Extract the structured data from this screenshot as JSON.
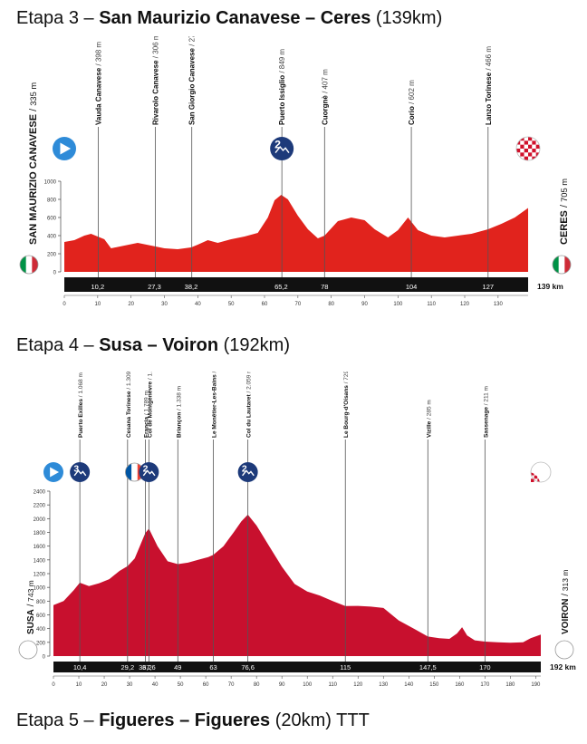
{
  "stages": [
    {
      "prefix": "Etapa 3 – ",
      "route": "San Maurizio Canavese – Ceres",
      "distance": "(139km)",
      "chart_data": {
        "type": "area",
        "fill_color": "#e1231d",
        "total_label": "139 km",
        "xlim": [
          0,
          139
        ],
        "ylim": [
          0,
          1000
        ],
        "x_ticks": [
          0,
          10,
          20,
          30,
          40,
          50,
          60,
          70,
          80,
          90,
          100,
          110,
          120,
          130
        ],
        "y_ticks": [
          0,
          200,
          400,
          600,
          800,
          1000
        ],
        "start": {
          "name": "SAN MAURIZIO CANAVESE",
          "alt": "335 m",
          "flag": "italy"
        },
        "finish": {
          "name": "CERES",
          "alt": "705 m",
          "flag": "italy"
        },
        "profile": [
          [
            0,
            330
          ],
          [
            3,
            350
          ],
          [
            6,
            400
          ],
          [
            8,
            420
          ],
          [
            10,
            390
          ],
          [
            12,
            360
          ],
          [
            14,
            260
          ],
          [
            18,
            290
          ],
          [
            22,
            320
          ],
          [
            26,
            290
          ],
          [
            30,
            260
          ],
          [
            34,
            250
          ],
          [
            38,
            270
          ],
          [
            40,
            300
          ],
          [
            43,
            350
          ],
          [
            46,
            320
          ],
          [
            50,
            360
          ],
          [
            54,
            390
          ],
          [
            58,
            430
          ],
          [
            61,
            600
          ],
          [
            63,
            790
          ],
          [
            65,
            850
          ],
          [
            67,
            800
          ],
          [
            70,
            620
          ],
          [
            73,
            470
          ],
          [
            76,
            370
          ],
          [
            78,
            400
          ],
          [
            82,
            560
          ],
          [
            86,
            600
          ],
          [
            90,
            570
          ],
          [
            93,
            470
          ],
          [
            97,
            380
          ],
          [
            100,
            460
          ],
          [
            103,
            600
          ],
          [
            106,
            460
          ],
          [
            110,
            400
          ],
          [
            114,
            380
          ],
          [
            118,
            400
          ],
          [
            122,
            420
          ],
          [
            127,
            470
          ],
          [
            131,
            530
          ],
          [
            135,
            600
          ],
          [
            139,
            705
          ]
        ],
        "km_markers": [
          {
            "km": 10,
            "label": "10,2"
          },
          {
            "km": 27,
            "label": "27,3"
          },
          {
            "km": 38,
            "label": "38,2"
          },
          {
            "km": 65,
            "label": "65,2"
          },
          {
            "km": 78,
            "label": "78"
          },
          {
            "km": 104,
            "label": "104"
          },
          {
            "km": 127,
            "label": "127"
          }
        ],
        "annotations": [
          {
            "km": 10.2,
            "name": "Vauda Canavese",
            "alt": "398 m"
          },
          {
            "km": 27.3,
            "name": "Rivarolo Canavese",
            "alt": "306 m"
          },
          {
            "km": 38.2,
            "name": "San Giorgio Canavese",
            "alt": "278 m"
          },
          {
            "km": 65.2,
            "name": "Puerto Issiglio",
            "alt": "849 m",
            "climb": "2"
          },
          {
            "km": 78,
            "name": "Cuorgnè",
            "alt": "407 m"
          },
          {
            "km": 104,
            "name": "Corio",
            "alt": "602 m"
          },
          {
            "km": 127,
            "name": "Lanzo Torinese",
            "alt": "466 m"
          }
        ]
      }
    },
    {
      "prefix": "Etapa 4 – ",
      "route": "Susa – Voiron",
      "distance": "(192km)",
      "chart_data": {
        "type": "area",
        "fill_color": "#c8102e",
        "total_label": "192 km",
        "xlim": [
          0,
          192
        ],
        "ylim": [
          0,
          2400
        ],
        "x_ticks": [
          0,
          10,
          20,
          30,
          40,
          50,
          60,
          70,
          80,
          90,
          100,
          110,
          120,
          130,
          140,
          150,
          160,
          170,
          180,
          190
        ],
        "y_ticks": [
          0,
          200,
          400,
          600,
          800,
          1000,
          1200,
          1400,
          1600,
          1800,
          2000,
          2200,
          2400
        ],
        "start": {
          "name": "SUSA",
          "alt": "743 m",
          "flag": "italy"
        },
        "finish": {
          "name": "VOIRON",
          "alt": "313 m",
          "flag": "france"
        },
        "profile": [
          [
            0,
            743
          ],
          [
            4,
            800
          ],
          [
            8,
            960
          ],
          [
            10.4,
            1068
          ],
          [
            14,
            1020
          ],
          [
            18,
            1060
          ],
          [
            22,
            1120
          ],
          [
            26,
            1240
          ],
          [
            29.2,
            1309
          ],
          [
            32,
            1420
          ],
          [
            36.2,
            1789
          ],
          [
            37.6,
            1854
          ],
          [
            41,
            1600
          ],
          [
            45,
            1380
          ],
          [
            49,
            1338
          ],
          [
            53,
            1360
          ],
          [
            57,
            1400
          ],
          [
            61,
            1440
          ],
          [
            63,
            1473
          ],
          [
            67,
            1600
          ],
          [
            71,
            1800
          ],
          [
            74,
            1960
          ],
          [
            76.6,
            2059
          ],
          [
            80,
            1900
          ],
          [
            85,
            1600
          ],
          [
            90,
            1300
          ],
          [
            95,
            1050
          ],
          [
            100,
            940
          ],
          [
            105,
            880
          ],
          [
            110,
            800
          ],
          [
            115,
            729
          ],
          [
            120,
            730
          ],
          [
            125,
            720
          ],
          [
            130,
            700
          ],
          [
            136,
            520
          ],
          [
            142,
            400
          ],
          [
            147.5,
            285
          ],
          [
            152,
            260
          ],
          [
            156,
            250
          ],
          [
            159,
            330
          ],
          [
            161,
            420
          ],
          [
            163,
            300
          ],
          [
            166,
            230
          ],
          [
            170,
            211
          ],
          [
            175,
            200
          ],
          [
            180,
            195
          ],
          [
            185,
            200
          ],
          [
            188,
            260
          ],
          [
            192,
            313
          ]
        ],
        "km_markers": [
          {
            "km": 10.4,
            "label": "10,4"
          },
          {
            "km": 29.2,
            "label": "29,2"
          },
          {
            "km": 36.2,
            "label": "36,2"
          },
          {
            "km": 37.6,
            "label": "37,6"
          },
          {
            "km": 49,
            "label": "49"
          },
          {
            "km": 63,
            "label": "63"
          },
          {
            "km": 76.6,
            "label": "76,6"
          },
          {
            "km": 115,
            "label": "115"
          },
          {
            "km": 147.5,
            "label": "147,5"
          },
          {
            "km": 170,
            "label": "170"
          }
        ],
        "annotations": [
          {
            "km": 10.4,
            "name": "Puerto Exilles",
            "alt": "1.068 m",
            "climb": "3"
          },
          {
            "km": 29.2,
            "name": "Cesana Torinese",
            "alt": "1.309 m"
          },
          {
            "km": 36.2,
            "name": "Francia",
            "alt": "1.789 m",
            "flag": "france"
          },
          {
            "km": 37.6,
            "name": "Col de Montgenèvre",
            "alt": "1.854 m",
            "climb": "2"
          },
          {
            "km": 49,
            "name": "Briançon",
            "alt": "1.338 m"
          },
          {
            "km": 63,
            "name": "Le Monêtier-Les-Bains",
            "alt": "1.473 m"
          },
          {
            "km": 76.6,
            "name": "Col du Lautaret",
            "alt": "2.059 m",
            "climb": "2"
          },
          {
            "km": 115,
            "name": "Le Bourg-d'Oisans",
            "alt": "729 m"
          },
          {
            "km": 147.5,
            "name": "Vizille",
            "alt": "285 m"
          },
          {
            "km": 170,
            "name": "Sassenage",
            "alt": "211 m"
          }
        ]
      }
    },
    {
      "prefix": "Etapa 5 – ",
      "route": "Figueres – Figueres",
      "distance": "(20km) TTT"
    }
  ],
  "colors": {
    "italy": [
      "#009246",
      "#ffffff",
      "#ce2b37"
    ],
    "france": [
      "#0055a4",
      "#ffffff",
      "#ef4135"
    ],
    "climb_badge": "#1d3a7a",
    "start_icon": "#2e8bd8",
    "timeline": "#111111"
  }
}
